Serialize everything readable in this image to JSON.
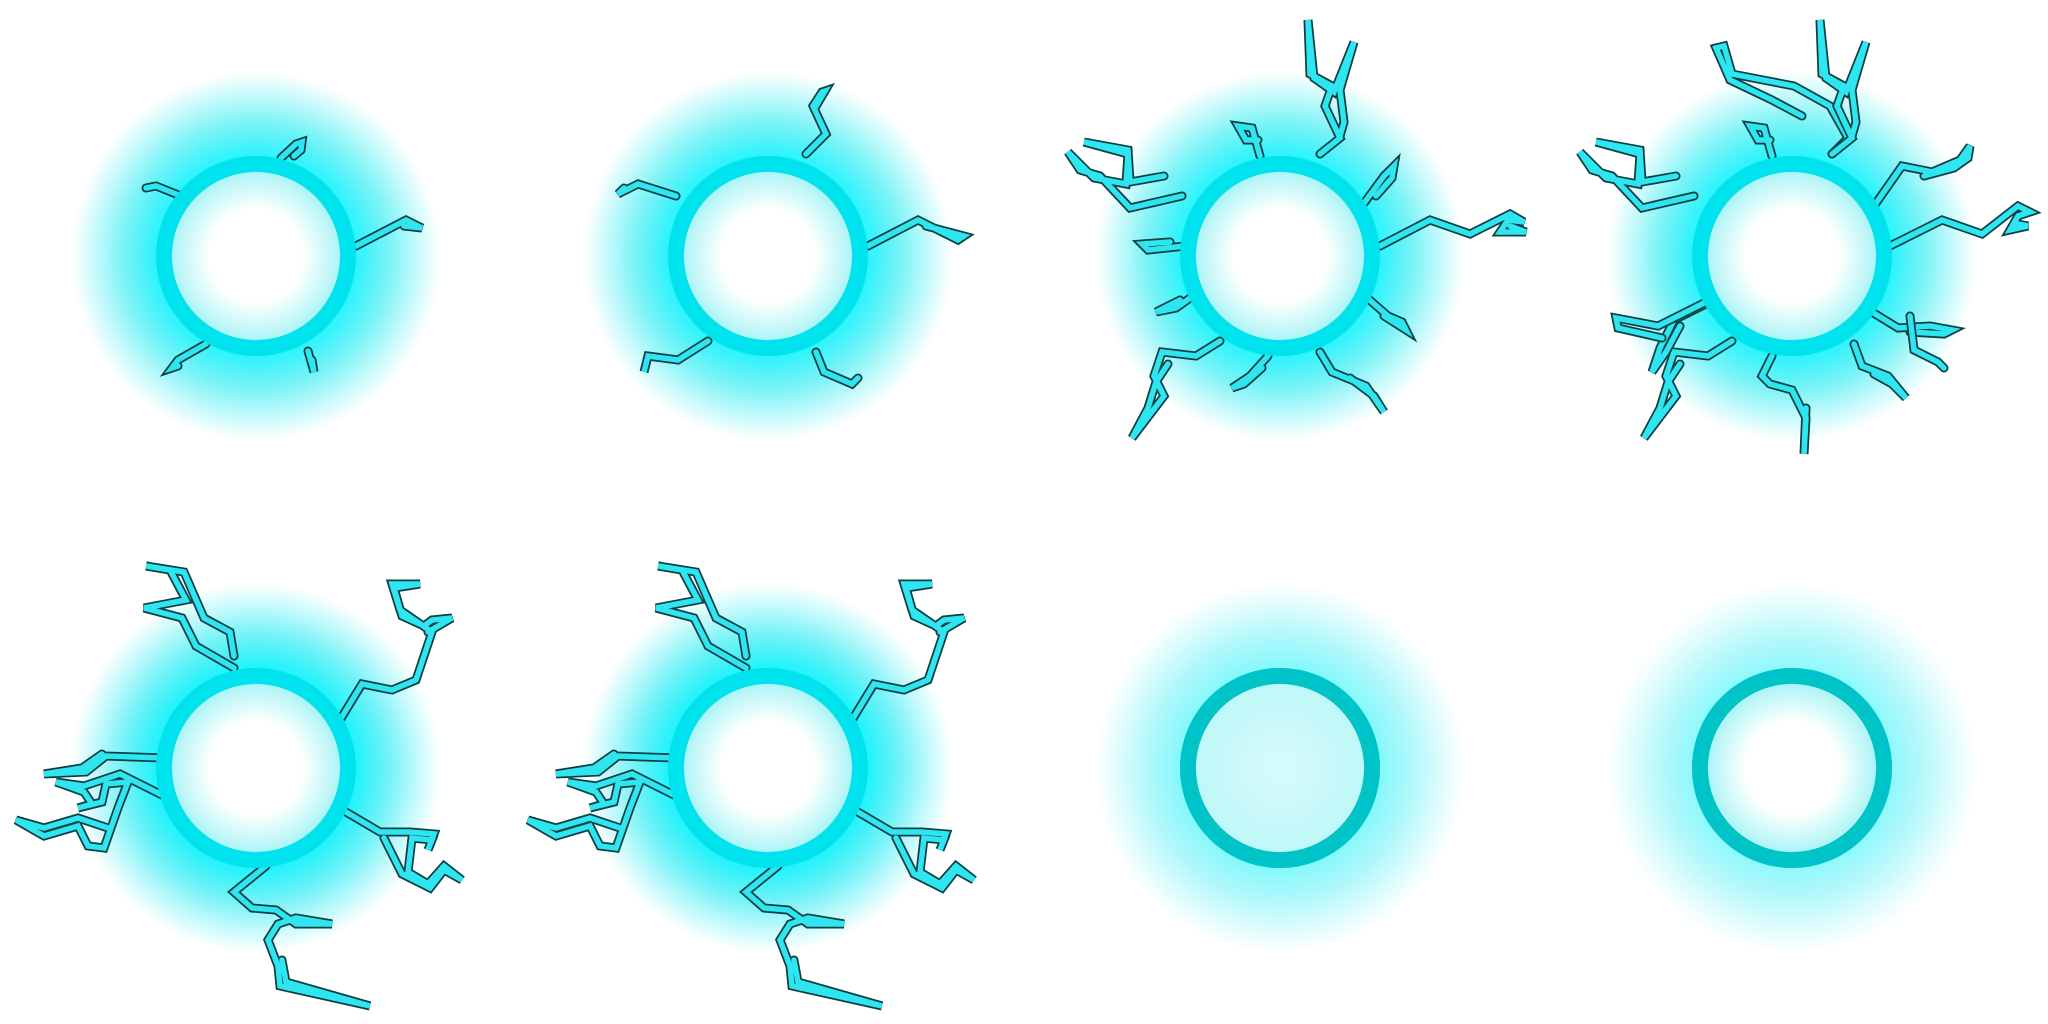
{
  "sprite_sheet": {
    "layout": {
      "rows": 2,
      "columns": 4
    },
    "colors": {
      "background": "#ffffff",
      "glow": "#00e8f0",
      "glow_bright": "#00f4ff",
      "ring": "#00c4c8",
      "core_center": "#ffffff",
      "core_edge": "#aef4f6",
      "crack_fill": "#2fe6f0",
      "crack_outline": "#0c3f44"
    },
    "frames": [
      {
        "id": "frame-1",
        "glow_intensity": 0.95,
        "crack_stage": 1
      },
      {
        "id": "frame-2",
        "glow_intensity": 0.95,
        "crack_stage": 2
      },
      {
        "id": "frame-3",
        "glow_intensity": 0.95,
        "crack_stage": 3
      },
      {
        "id": "frame-4",
        "glow_intensity": 0.95,
        "crack_stage": 4
      },
      {
        "id": "frame-5",
        "glow_intensity": 1.0,
        "crack_stage": 5
      },
      {
        "id": "frame-6",
        "glow_intensity": 1.0,
        "crack_stage": 5
      },
      {
        "id": "frame-7",
        "glow_intensity": 0.55,
        "crack_stage": 0
      },
      {
        "id": "frame-8",
        "glow_intensity": 0.5,
        "crack_stage": 0
      }
    ]
  }
}
